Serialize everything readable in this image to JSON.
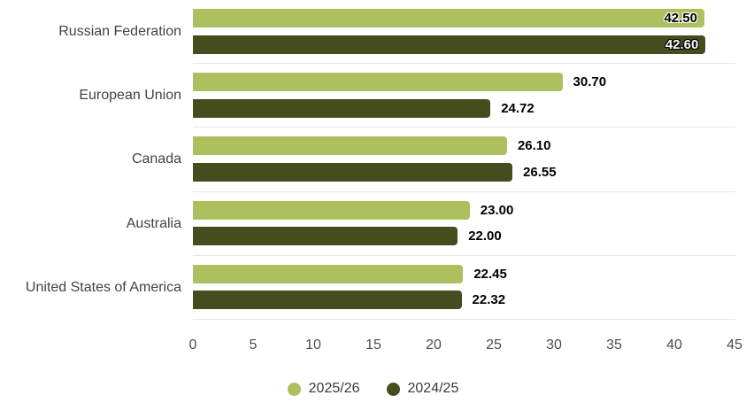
{
  "chart_data": {
    "type": "bar",
    "orientation": "horizontal",
    "title": "",
    "categories": [
      "Russian Federation",
      "European Union",
      "Canada",
      "Australia",
      "United States of America"
    ],
    "series": [
      {
        "name": "2025/26",
        "color": "#adc05e",
        "values": [
          42.5,
          30.7,
          26.1,
          23.0,
          22.45
        ],
        "labels": [
          "42.50",
          "30.70",
          "26.10",
          "23.00",
          "22.45"
        ]
      },
      {
        "name": "2024/25",
        "color": "#454d1f",
        "values": [
          42.6,
          24.72,
          26.55,
          22.0,
          22.32
        ],
        "labels": [
          "42.60",
          "24.72",
          "26.55",
          "22.00",
          "22.32"
        ]
      }
    ],
    "xlim": [
      0,
      45
    ],
    "x_ticks": [
      "0",
      "5",
      "10",
      "15",
      "20",
      "25",
      "30",
      "35",
      "40",
      "45"
    ],
    "grid": "horizontal category separator lines",
    "legend_position": "bottom-center"
  },
  "style": {
    "series_colors": [
      "#adc05e",
      "#454d1f"
    ],
    "grid_color": "#e7e7e7",
    "category_label_color": "#424242",
    "tick_label_color": "#4d4d4d",
    "value_label_color": "#000000",
    "background": "#ffffff"
  }
}
